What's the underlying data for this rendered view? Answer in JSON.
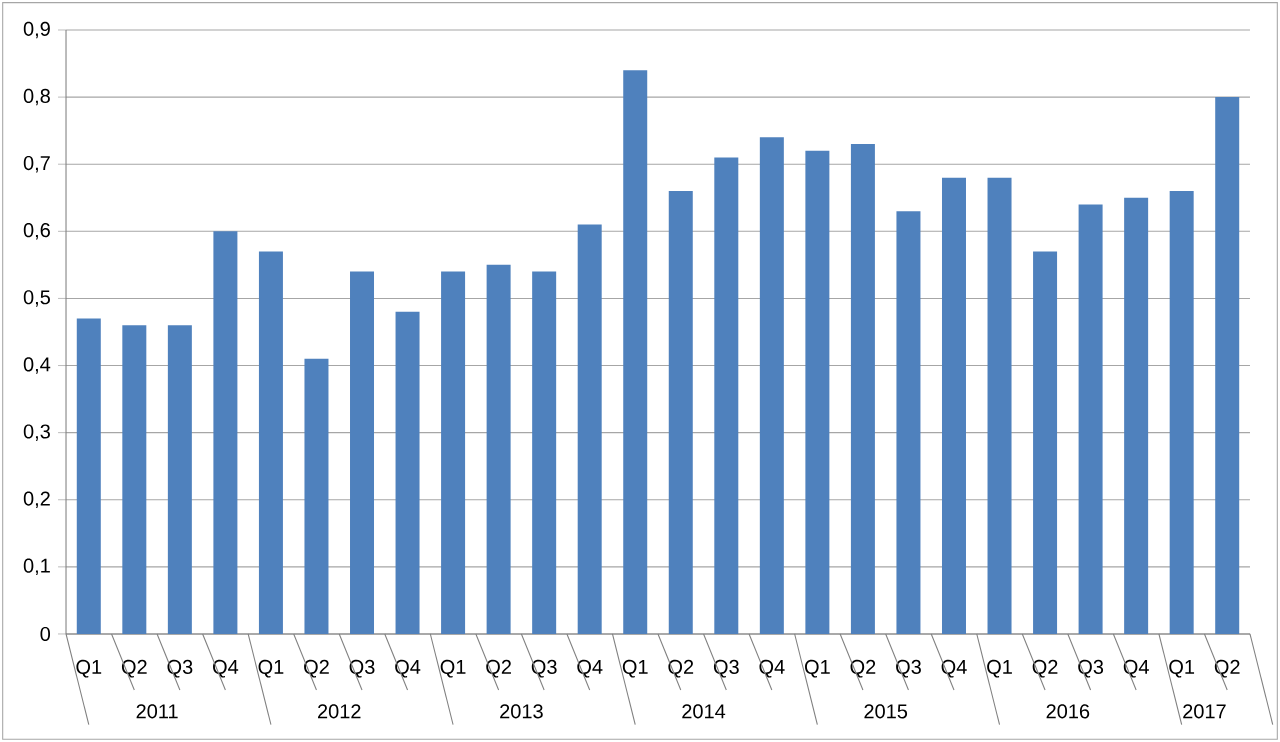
{
  "chart_data": {
    "type": "bar",
    "categories": [
      "Q1",
      "Q2",
      "Q3",
      "Q4",
      "Q1",
      "Q2",
      "Q3",
      "Q4",
      "Q1",
      "Q2",
      "Q3",
      "Q4",
      "Q1",
      "Q2",
      "Q3",
      "Q4",
      "Q1",
      "Q2",
      "Q3",
      "Q4",
      "Q1",
      "Q2",
      "Q3",
      "Q4",
      "Q1",
      "Q2"
    ],
    "values": [
      0.47,
      0.46,
      0.46,
      0.6,
      0.57,
      0.41,
      0.54,
      0.48,
      0.54,
      0.55,
      0.54,
      0.61,
      0.84,
      0.66,
      0.71,
      0.74,
      0.72,
      0.73,
      0.63,
      0.68,
      0.68,
      0.57,
      0.64,
      0.65,
      0.66,
      0.8
    ],
    "color": "#4f81bd",
    "annotations": [
      "2011",
      "2012",
      "2013",
      "2014",
      "2015",
      "2016",
      "2017"
    ],
    "ylim": [
      0,
      0.9
    ],
    "yticks": [
      0,
      {
        "value": 0.1,
        "label": "0,1"
      },
      {
        "value": 0.2,
        "label": "0,2"
      },
      {
        "value": 0.3,
        "label": "0,3"
      },
      {
        "value": 0.4,
        "label": "0,4"
      },
      {
        "value": 0.5,
        "label": "0,5"
      },
      {
        "value": 0.6,
        "label": "0,6"
      },
      {
        "value": 0.7,
        "label": "0,7"
      },
      {
        "value": 0.8,
        "label": "0,8"
      },
      {
        "value": 0.9,
        "label": "0,9"
      }
    ],
    "grid": "y"
  }
}
